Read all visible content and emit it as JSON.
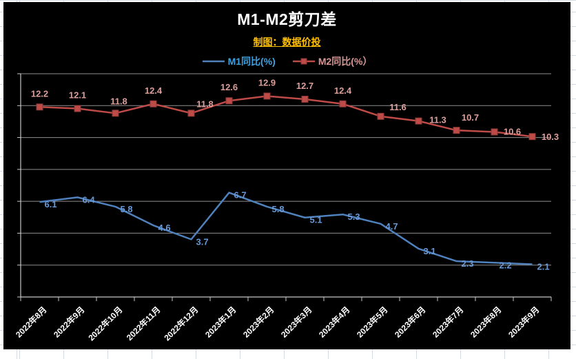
{
  "chart_data": {
    "type": "line",
    "title": "M1-M2剪刀差",
    "subtitle": "制图：数据价投",
    "categories": [
      "2022年8月",
      "2022年9月",
      "2022年10月",
      "2022年11月",
      "2022年12月",
      "2023年1月",
      "2023年2月",
      "2023年3月",
      "2023年4月",
      "2023年5月",
      "2023年6月",
      "2023年7月",
      "2023年8月",
      "2023年9月"
    ],
    "series": [
      {
        "name": "M1同比(%)",
        "color": "#4f81bd",
        "label_color": "#6699d6",
        "marker": "none",
        "values": [
          6.1,
          6.4,
          5.8,
          4.6,
          3.7,
          6.7,
          5.8,
          5.1,
          5.3,
          4.7,
          3.1,
          2.3,
          2.2,
          2.1
        ]
      },
      {
        "name": "M2同比(%）",
        "color": "#be4b48",
        "label_color": "#dc9e9b",
        "marker": "square",
        "values": [
          12.2,
          12.1,
          11.8,
          12.4,
          11.8,
          12.6,
          12.9,
          12.7,
          12.4,
          11.6,
          11.3,
          10.7,
          10.6,
          10.3
        ]
      }
    ],
    "ylim": [
      0,
      14
    ],
    "grid_interval": 2,
    "grid": true,
    "legend_position": "top",
    "xlabel": "",
    "ylabel": "",
    "colors": {
      "background": "#000000",
      "title": "#ffffff",
      "subtitle": "#ffc000",
      "legend_m1_text": "#3fa2e0",
      "legend_m2_text": "#da9694",
      "gridline": "#8f8f8f",
      "axis": "#c8c8c8",
      "x_labels": "#ffffff"
    }
  }
}
